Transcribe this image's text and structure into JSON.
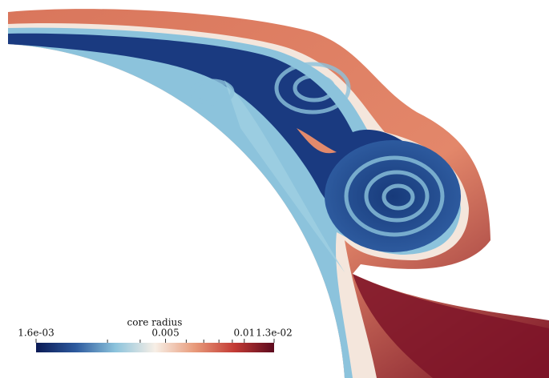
{
  "chart_data": {
    "type": "field",
    "colorbar_label": "core radius",
    "clim": [
      0.0016,
      0.013
    ],
    "log_scale": true,
    "ticks": [
      {
        "value": 0.0016,
        "label": "1.6e-03"
      },
      0.005,
      0.01,
      {
        "value": 0.013,
        "label": "1.3e-02"
      }
    ],
    "minor_ticks": [
      0.003,
      0.004,
      0.006,
      0.007,
      0.008,
      0.009
    ],
    "colormap": [
      "#0b1a55",
      "#2d5a9e",
      "#8cc3dc",
      "#f7efe6",
      "#e89a7a",
      "#c33b35",
      "#5c0a1e"
    ]
  }
}
